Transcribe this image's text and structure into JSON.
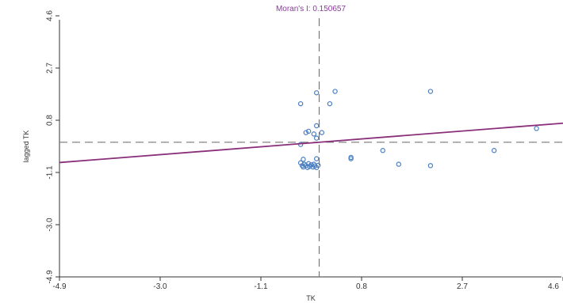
{
  "chart_data": {
    "type": "scatter",
    "title": "Moran's I: 0.150657",
    "xlabel": "TK",
    "ylabel": "lagged TK",
    "xlim": [
      -4.9,
      4.6
    ],
    "ylim": [
      -4.9,
      4.6
    ],
    "xticks": [
      "-4.9",
      "-3.0",
      "-1.1",
      "0.8",
      "2.7",
      "4.6"
    ],
    "yticks": [
      "-4.9",
      "-3.0",
      "-1.1",
      "0.8",
      "2.7",
      "4.6"
    ],
    "mean_x": 0.0,
    "mean_y": 0.0,
    "regression": {
      "slope": 0.150657,
      "intercept": 0.0
    },
    "points": [
      {
        "x": -0.35,
        "y": -0.75
      },
      {
        "x": -0.32,
        "y": -0.85
      },
      {
        "x": -0.3,
        "y": -0.9
      },
      {
        "x": -0.28,
        "y": -0.8
      },
      {
        "x": -0.25,
        "y": -0.85
      },
      {
        "x": -0.22,
        "y": -0.92
      },
      {
        "x": -0.2,
        "y": -0.78
      },
      {
        "x": -0.18,
        "y": -0.88
      },
      {
        "x": -0.15,
        "y": -0.82
      },
      {
        "x": -0.12,
        "y": -0.9
      },
      {
        "x": -0.1,
        "y": -0.8
      },
      {
        "x": -0.08,
        "y": -0.86
      },
      {
        "x": -0.05,
        "y": -0.92
      },
      {
        "x": -0.02,
        "y": -0.84
      },
      {
        "x": -0.3,
        "y": -0.62
      },
      {
        "x": -0.05,
        "y": -0.6
      },
      {
        "x": -0.35,
        "y": -0.08
      },
      {
        "x": -0.2,
        "y": 0.4
      },
      {
        "x": -0.25,
        "y": 0.35
      },
      {
        "x": -0.1,
        "y": 0.3
      },
      {
        "x": -0.05,
        "y": 0.15
      },
      {
        "x": 0.05,
        "y": 0.35
      },
      {
        "x": -0.05,
        "y": 0.6
      },
      {
        "x": -0.35,
        "y": 1.4
      },
      {
        "x": -0.05,
        "y": 1.8
      },
      {
        "x": 0.2,
        "y": 1.4
      },
      {
        "x": 0.3,
        "y": 1.85
      },
      {
        "x": 0.6,
        "y": -0.55
      },
      {
        "x": 0.6,
        "y": -0.6
      },
      {
        "x": 1.2,
        "y": -0.3
      },
      {
        "x": 1.5,
        "y": -0.8
      },
      {
        "x": 2.1,
        "y": -0.85
      },
      {
        "x": 2.1,
        "y": 1.85
      },
      {
        "x": 3.3,
        "y": -0.3
      },
      {
        "x": 4.1,
        "y": 0.5
      }
    ],
    "colors": {
      "points": "#4a7fc1",
      "regression": "#8a2f7a",
      "guides": "#777777",
      "title": "#8a3a9a"
    },
    "grid": false
  }
}
